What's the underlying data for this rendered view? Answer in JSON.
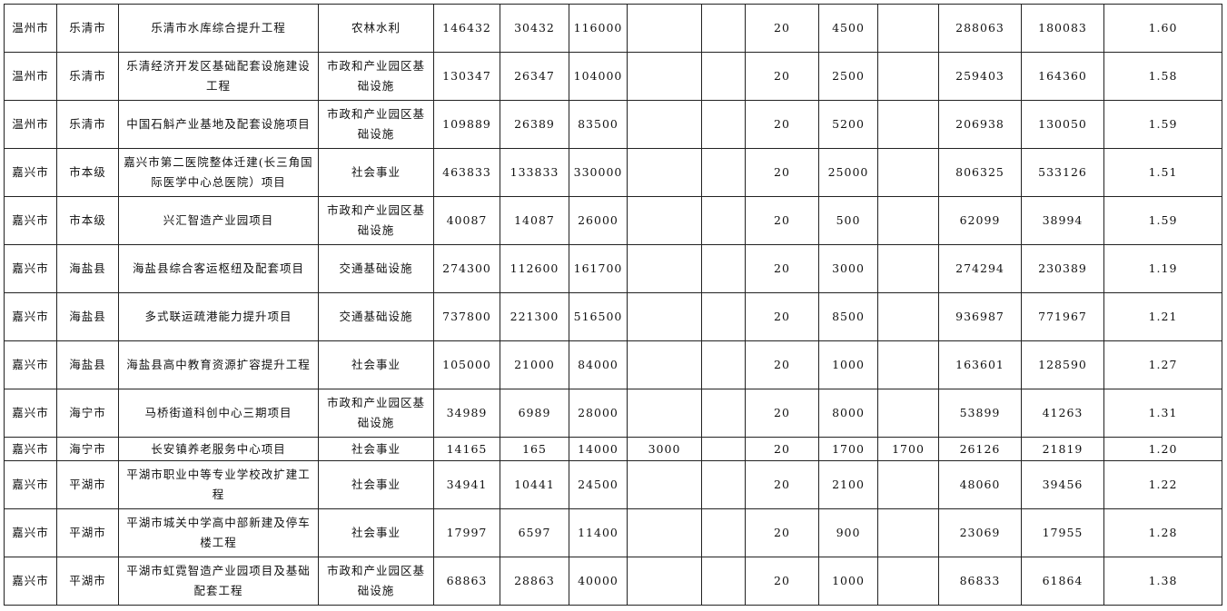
{
  "rows": [
    [
      "温州市",
      "乐清市",
      "乐清市水库综合提升工程",
      "农林水利",
      "146432",
      "30432",
      "116000",
      "",
      "",
      "20",
      "4500",
      "",
      "288063",
      "180083",
      "1.60"
    ],
    [
      "温州市",
      "乐清市",
      "乐清经济开发区基础配套设施建设工程",
      "市政和产业园区基础设施",
      "130347",
      "26347",
      "104000",
      "",
      "",
      "20",
      "2500",
      "",
      "259403",
      "164360",
      "1.58"
    ],
    [
      "温州市",
      "乐清市",
      "中国石斛产业基地及配套设施项目",
      "市政和产业园区基础设施",
      "109889",
      "26389",
      "83500",
      "",
      "",
      "20",
      "5200",
      "",
      "206938",
      "130050",
      "1.59"
    ],
    [
      "嘉兴市",
      "市本级",
      "嘉兴市第二医院整体迁建(长三角国际医学中心总医院）项目",
      "社会事业",
      "463833",
      "133833",
      "330000",
      "",
      "",
      "20",
      "25000",
      "",
      "806325",
      "533126",
      "1.51"
    ],
    [
      "嘉兴市",
      "市本级",
      "兴汇智造产业园项目",
      "市政和产业园区基础设施",
      "40087",
      "14087",
      "26000",
      "",
      "",
      "20",
      "500",
      "",
      "62099",
      "38994",
      "1.59"
    ],
    [
      "嘉兴市",
      "海盐县",
      "海盐县综合客运枢纽及配套项目",
      "交通基础设施",
      "274300",
      "112600",
      "161700",
      "",
      "",
      "20",
      "3000",
      "",
      "274294",
      "230389",
      "1.19"
    ],
    [
      "嘉兴市",
      "海盐县",
      "多式联运疏港能力提升项目",
      "交通基础设施",
      "737800",
      "221300",
      "516500",
      "",
      "",
      "20",
      "8500",
      "",
      "936987",
      "771967",
      "1.21"
    ],
    [
      "嘉兴市",
      "海盐县",
      "海盐县高中教育资源扩容提升工程",
      "社会事业",
      "105000",
      "21000",
      "84000",
      "",
      "",
      "20",
      "1000",
      "",
      "163601",
      "128590",
      "1.27"
    ],
    [
      "嘉兴市",
      "海宁市",
      "马桥街道科创中心三期项目",
      "市政和产业园区基础设施",
      "34989",
      "6989",
      "28000",
      "",
      "",
      "20",
      "8000",
      "",
      "53899",
      "41263",
      "1.31"
    ],
    [
      "嘉兴市",
      "海宁市",
      "长安镇养老服务中心项目",
      "社会事业",
      "14165",
      "165",
      "14000",
      "3000",
      "",
      "20",
      "1700",
      "1700",
      "26126",
      "21819",
      "1.20"
    ],
    [
      "嘉兴市",
      "平湖市",
      "平湖市职业中等专业学校改扩建工程",
      "社会事业",
      "34941",
      "10441",
      "24500",
      "",
      "",
      "20",
      "2100",
      "",
      "48060",
      "39456",
      "1.22"
    ],
    [
      "嘉兴市",
      "平湖市",
      "平湖市城关中学高中部新建及停车楼工程",
      "社会事业",
      "17997",
      "6597",
      "11400",
      "",
      "",
      "20",
      "900",
      "",
      "23069",
      "17955",
      "1.28"
    ],
    [
      "嘉兴市",
      "平湖市",
      "平湖市虹霓智造产业园项目及基础配套工程",
      "市政和产业园区基础设施",
      "68863",
      "28863",
      "40000",
      "",
      "",
      "20",
      "1000",
      "",
      "86833",
      "61864",
      "1.38"
    ]
  ]
}
